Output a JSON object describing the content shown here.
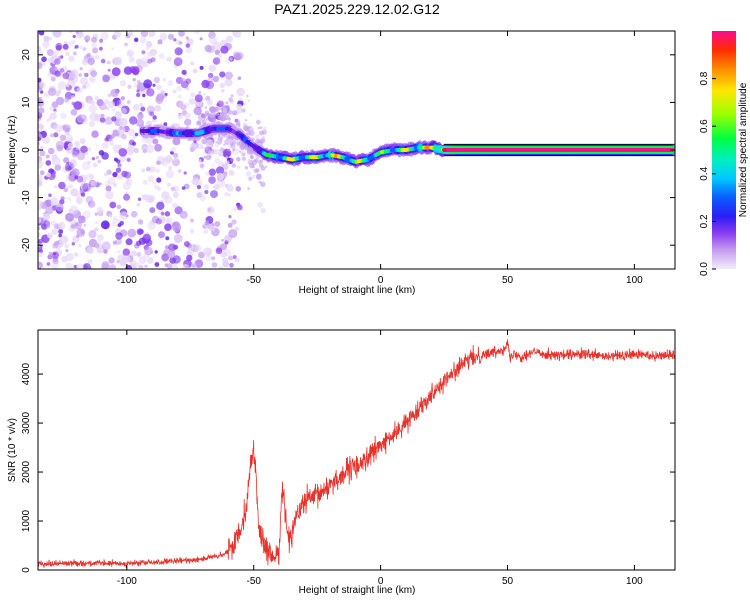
{
  "title": "PAZ1.2025.229.12.02.G12",
  "colors": {
    "snr_line": "#e8312a",
    "colormap": [
      "#e6d6f7",
      "#c49cf0",
      "#8a3df0",
      "#5a14e6",
      "#1e1ef5",
      "#0a5cff",
      "#00c8ff",
      "#00f0c0",
      "#00ff40",
      "#9cff00",
      "#ffe600",
      "#ff8c00",
      "#ff2d00",
      "#ff004c",
      "#ff0a8c"
    ]
  },
  "chart_data": [
    {
      "id": "spectrogram",
      "type": "heatmap",
      "xlabel": "Height of straight line (km)",
      "ylabel": "Frequency (Hz)",
      "xlim": [
        -135,
        116
      ],
      "ylim": [
        -25,
        25
      ],
      "xticks": [
        -100,
        -50,
        0,
        50,
        100
      ],
      "yticks": [
        -20,
        -10,
        0,
        10,
        20
      ],
      "colorbar": {
        "label": "Normalized spectral amplitude",
        "range": [
          0,
          1
        ],
        "ticks": [
          "0.0",
          "0.2",
          "0.4",
          "0.6",
          "0.8"
        ]
      },
      "ridge": {
        "x": [
          -94,
          -88,
          -80,
          -72,
          -66,
          -60,
          -55,
          -52,
          -48,
          -45,
          -40,
          -35,
          -30,
          -25,
          -20,
          -15,
          -10,
          -5,
          0,
          5,
          10,
          15,
          20,
          25,
          30,
          115
        ],
        "freq": [
          4,
          4,
          3.5,
          3.5,
          4.5,
          4.5,
          3,
          1.5,
          0,
          -1,
          -1.5,
          -2,
          -1.5,
          -1.5,
          -1,
          -1.5,
          -2.5,
          -2,
          -0.5,
          0,
          0,
          0.5,
          0.5,
          0,
          0,
          0
        ],
        "amplitude": [
          0.35,
          0.3,
          0.35,
          0.4,
          0.4,
          0.3,
          0.3,
          0.28,
          0.35,
          0.5,
          0.6,
          0.65,
          0.6,
          0.65,
          0.7,
          0.65,
          0.6,
          0.6,
          0.55,
          0.6,
          0.65,
          0.7,
          0.7,
          0.95,
          1.0,
          1.0
        ]
      }
    },
    {
      "id": "snr",
      "type": "line",
      "xlabel": "Height of straight line (km)",
      "ylabel": "SNR (10 * v/v)",
      "xlim": [
        -135,
        116
      ],
      "ylim": [
        0,
        4900
      ],
      "xticks": [
        -100,
        -50,
        0,
        50,
        100
      ],
      "yticks": [
        0,
        1000,
        2000,
        3000,
        4000
      ],
      "x": [
        -135,
        -120,
        -100,
        -80,
        -70,
        -62,
        -58,
        -55,
        -53,
        -51,
        -50,
        -49,
        -48,
        -46,
        -44,
        -42,
        -40,
        -39,
        -38,
        -37,
        -36,
        -34,
        -30,
        -25,
        -20,
        -15,
        -10,
        -5,
        0,
        5,
        10,
        15,
        20,
        25,
        30,
        35,
        40,
        45,
        48,
        50,
        51,
        53,
        55,
        60,
        70,
        80,
        90,
        100,
        110,
        116
      ],
      "y": [
        130,
        140,
        130,
        180,
        230,
        300,
        500,
        900,
        1300,
        2200,
        2500,
        1800,
        900,
        500,
        300,
        250,
        400,
        1600,
        1400,
        900,
        600,
        1000,
        1400,
        1500,
        1750,
        1950,
        2100,
        2300,
        2550,
        2750,
        3000,
        3300,
        3600,
        3850,
        4100,
        4300,
        4400,
        4450,
        4500,
        4650,
        4300,
        4450,
        4350,
        4450,
        4380,
        4400,
        4350,
        4400,
        4380,
        4400
      ]
    }
  ]
}
